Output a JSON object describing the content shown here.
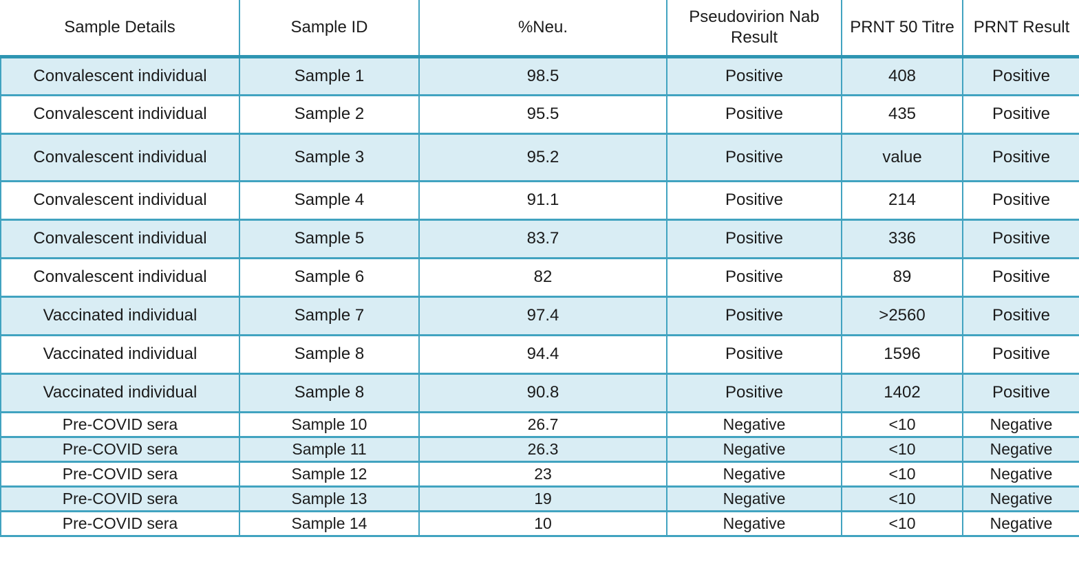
{
  "colors": {
    "row_band_fill": "#d9edf4",
    "grid_border": "#41a3c0",
    "header_rule": "#2e95b2",
    "text": "#1b1b1b",
    "background": "#ffffff"
  },
  "chart_data": {
    "type": "table",
    "title": "",
    "columns": [
      "Sample Details",
      "Sample ID",
      "%Neu.",
      "Pseudovirion Nab Result",
      "PRNT 50 Titre",
      "PRNT Result"
    ],
    "column_keys": [
      "sample-details",
      "sample-id",
      "pct-neu",
      "pseudovirion-nab-result",
      "prnt-50-titre",
      "prnt-result"
    ],
    "rows": [
      [
        "Convalescent individual",
        "Sample 1",
        "98.5",
        "Positive",
        "408",
        "Positive"
      ],
      [
        "Convalescent individual",
        "Sample 2",
        "95.5",
        "Positive",
        "435",
        "Positive"
      ],
      [
        "Convalescent individual",
        "Sample 3",
        "95.2",
        "Positive",
        "value",
        "Positive"
      ],
      [
        "Convalescent individual",
        "Sample 4",
        "91.1",
        "Positive",
        "214",
        "Positive"
      ],
      [
        "Convalescent individual",
        "Sample 5",
        "83.7",
        "Positive",
        "336",
        "Positive"
      ],
      [
        "Convalescent individual",
        "Sample 6",
        "82",
        "Positive",
        "89",
        "Positive"
      ],
      [
        "Vaccinated individual",
        "Sample 7",
        "97.4",
        "Positive",
        ">2560",
        "Positive"
      ],
      [
        "Vaccinated individual",
        "Sample 8",
        "94.4",
        "Positive",
        "1596",
        "Positive"
      ],
      [
        "Vaccinated individual",
        "Sample 8",
        "90.8",
        "Positive",
        "1402",
        "Positive"
      ],
      [
        "Pre-COVID sera",
        "Sample 10",
        "26.7",
        "Negative",
        "<10",
        "Negative"
      ],
      [
        "Pre-COVID sera",
        "Sample 11",
        "26.3",
        "Negative",
        "<10",
        "Negative"
      ],
      [
        "Pre-COVID sera",
        "Sample 12",
        "23",
        "Negative",
        "<10",
        "Negative"
      ],
      [
        "Pre-COVID sera",
        "Sample 13",
        "19",
        "Negative",
        "<10",
        "Negative"
      ],
      [
        "Pre-COVID sera",
        "Sample 14",
        "10",
        "Negative",
        "<10",
        "Negative"
      ]
    ]
  }
}
